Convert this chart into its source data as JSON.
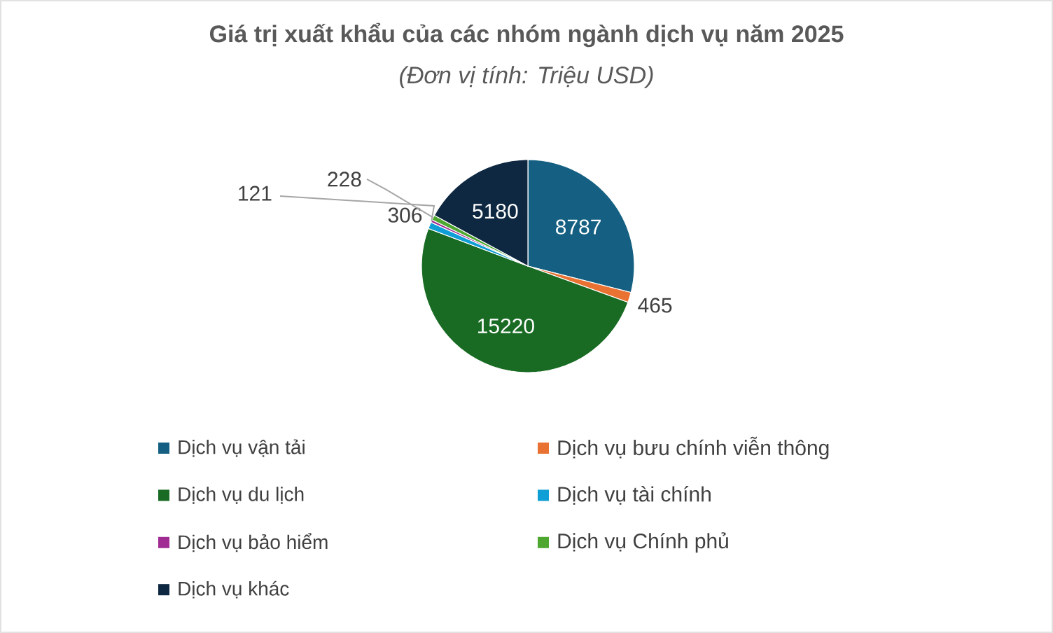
{
  "chart_data": {
    "type": "pie",
    "title": "Giá trị xuất khẩu của các nhóm ngành dịch vụ năm 2025",
    "subtitle": "(Đơn vị tính: Triệu USD)",
    "categories": [
      "Dịch vụ vận tải",
      "Dịch vụ bưu chính viễn thông",
      "Dịch vụ du lịch",
      "Dịch vụ tài chính",
      "Dịch vụ bảo hiểm",
      "Dịch vụ Chính phủ",
      "Dịch vụ khác"
    ],
    "values": [
      8787,
      465,
      15220,
      306,
      121,
      228,
      5180
    ],
    "colors": [
      "#156082",
      "#e97132",
      "#196b24",
      "#0f9ed5",
      "#a02b93",
      "#4ea72e",
      "#0e2841"
    ],
    "data_labels": true,
    "legend": "bottom"
  }
}
